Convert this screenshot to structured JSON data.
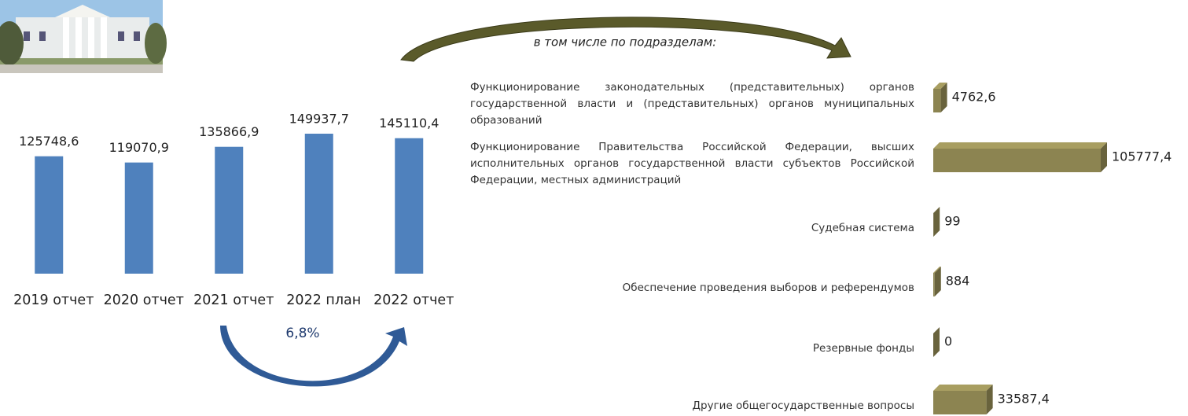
{
  "chart_data": [
    {
      "type": "bar",
      "categories": [
        "2019 отчет",
        "2020 отчет",
        "2021 отчет",
        "2022 план",
        "2022 отчет"
      ],
      "values": [
        125748.6,
        119070.9,
        135866.9,
        149937.7,
        145110.4
      ],
      "value_labels": [
        "125748,6",
        "119070,9",
        "135866,9",
        "149937,7",
        "145110,4"
      ],
      "color": "#4f81bd",
      "annotation": "6,8%"
    },
    {
      "type": "hbar3d",
      "annotation": "в том числе по подразделам:",
      "categories": [
        "Функционирование законодательных (представительных) органов государственной власти и (представительных) органов муниципальных образований",
        "Функционирование Правительства Российской Федерации, высших исполнительных органов государственной власти субъектов Российской Федерации, местных администраций",
        "Судебная система",
        "Обеспечение проведения выборов и референдумов",
        "Резервные фонды",
        "Другие общегосударственные вопросы"
      ],
      "values": [
        4762.6,
        105777.4,
        99,
        884,
        0,
        33587.4
      ],
      "value_labels": [
        "4762,6",
        "105777,4",
        "99",
        "884",
        "0",
        "33587,4"
      ],
      "color": "#8c8451"
    }
  ]
}
